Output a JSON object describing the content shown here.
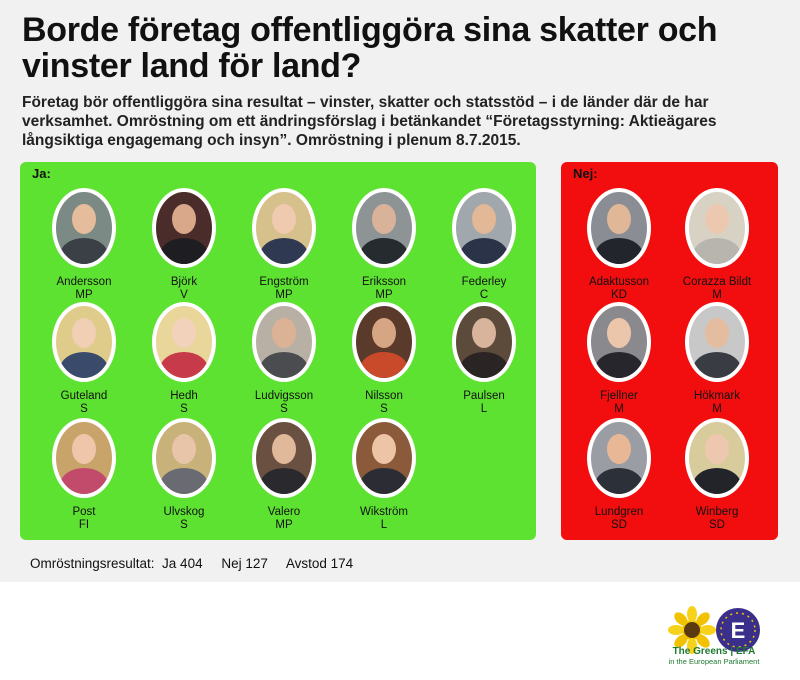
{
  "title": "Borde företag offentliggöra sina skatter och vinster land för land?",
  "intro": "Företag bör offentliggöra  sina resultat – vinster, skatter och statsstöd – i de länder där de har verksamhet. Omröstning om ett ändringsförslag i betänkandet “Företagsstyrning: Aktieägares långsiktiga engagemang och insyn”. Omröstning i plenum 8.7.2015.",
  "ja": {
    "label": "Ja:",
    "members": [
      {
        "name": "Andersson",
        "party": "MP"
      },
      {
        "name": "Björk",
        "party": "V"
      },
      {
        "name": "Engström",
        "party": "MP"
      },
      {
        "name": "Eriksson",
        "party": "MP"
      },
      {
        "name": "Federley",
        "party": "C"
      },
      {
        "name": "Guteland",
        "party": "S"
      },
      {
        "name": "Hedh",
        "party": "S"
      },
      {
        "name": "Ludvigsson",
        "party": "S"
      },
      {
        "name": "Nilsson",
        "party": "S"
      },
      {
        "name": "Paulsen",
        "party": "L"
      },
      {
        "name": "Post",
        "party": "FI"
      },
      {
        "name": "Ulvskog",
        "party": "S"
      },
      {
        "name": "Valero",
        "party": "MP"
      },
      {
        "name": "Wikström",
        "party": "L"
      }
    ]
  },
  "nej": {
    "label": "Nej:",
    "members": [
      {
        "name": "Adaktusson",
        "party": "KD"
      },
      {
        "name": "Corazza Bildt",
        "party": "M"
      },
      {
        "name": "Fjellner",
        "party": "M"
      },
      {
        "name": "Hökmark",
        "party": "M"
      },
      {
        "name": "Lundgren",
        "party": "SD"
      },
      {
        "name": "Winberg",
        "party": "SD"
      }
    ]
  },
  "result": {
    "text": "Omröstningsresultat:  Ja 404     Nej 127     Avstod 174"
  },
  "logo": {
    "brand": "The Greens | EFA",
    "subtitle": "in the European Parliament"
  },
  "colors": {
    "ja_panel": "#5ee232",
    "nej_panel": "#f20e0e",
    "background": "#f1f1f1"
  }
}
